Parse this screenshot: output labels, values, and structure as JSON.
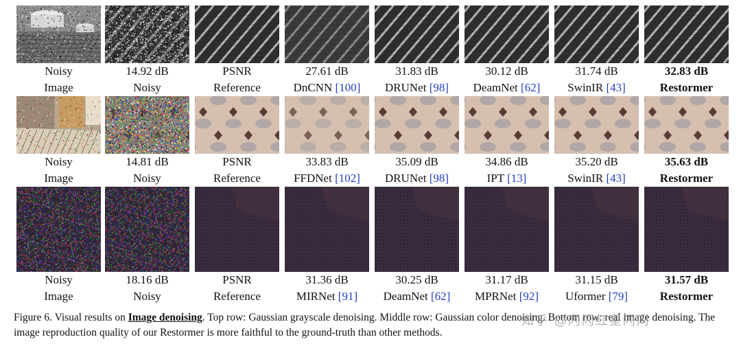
{
  "rows": [
    {
      "variant": "gray",
      "cells": [
        {
          "line1": "Noisy",
          "line2": "Image",
          "cite": "",
          "bold": false
        },
        {
          "line1": "14.92 dB",
          "line2": "Noisy",
          "cite": "",
          "bold": false
        },
        {
          "line1": "PSNR",
          "line2": "Reference",
          "cite": "",
          "bold": false
        },
        {
          "line1": "27.61 dB",
          "line2": "DnCNN ",
          "cite": "[100]",
          "bold": false
        },
        {
          "line1": "31.83 dB",
          "line2": "DRUNet ",
          "cite": "[98]",
          "bold": false
        },
        {
          "line1": "30.12 dB",
          "line2": "DeamNet ",
          "cite": "[62]",
          "bold": false
        },
        {
          "line1": "31.74 dB",
          "line2": "SwinIR ",
          "cite": "[43]",
          "bold": false
        },
        {
          "line1": "32.83 dB",
          "line2": "Restormer",
          "cite": "",
          "bold": true
        }
      ]
    },
    {
      "variant": "color",
      "cells": [
        {
          "line1": "Noisy",
          "line2": "Image",
          "cite": "",
          "bold": false
        },
        {
          "line1": "14.81 dB",
          "line2": "Noisy",
          "cite": "",
          "bold": false
        },
        {
          "line1": "PSNR",
          "line2": "Reference",
          "cite": "",
          "bold": false
        },
        {
          "line1": "33.83 dB",
          "line2": "FFDNet ",
          "cite": "[102]",
          "bold": false
        },
        {
          "line1": "35.09 dB",
          "line2": "DRUNet ",
          "cite": "[98]",
          "bold": false
        },
        {
          "line1": "34.86 dB",
          "line2": "IPT ",
          "cite": "[13]",
          "bold": false
        },
        {
          "line1": "35.20 dB",
          "line2": "SwinIR ",
          "cite": "[43]",
          "bold": false
        },
        {
          "line1": "35.63 dB",
          "line2": "Restormer",
          "cite": "",
          "bold": true
        }
      ]
    },
    {
      "variant": "real",
      "cells": [
        {
          "line1": "Noisy",
          "line2": "Image",
          "cite": "",
          "bold": false
        },
        {
          "line1": "18.16 dB",
          "line2": "Noisy",
          "cite": "",
          "bold": false
        },
        {
          "line1": "PSNR",
          "line2": "Reference",
          "cite": "",
          "bold": false
        },
        {
          "line1": "31.36 dB",
          "line2": "MIRNet ",
          "cite": "[91]",
          "bold": false
        },
        {
          "line1": "30.25 dB",
          "line2": "DeamNet ",
          "cite": "[62]",
          "bold": false
        },
        {
          "line1": "31.17 dB",
          "line2": "MPRNet ",
          "cite": "[92]",
          "bold": false
        },
        {
          "line1": "31.15 dB",
          "line2": "Uformer ",
          "cite": "[79]",
          "bold": false
        },
        {
          "line1": "31.57 dB",
          "line2": "Restormer",
          "cite": "",
          "bold": true
        }
      ]
    }
  ],
  "caption": {
    "prefix": "Figure 6. Visual results on ",
    "emphasis": "Image denoising",
    "rest": ". Top row: Gaussian grayscale denoising. Middle row: Gaussian color denoising. Bottom row: real image denoising. The image reproduction quality of our Restormer is more faithful to the ground-truth than other methods."
  },
  "watermark": "知乎 @闪闪红星闪闪"
}
